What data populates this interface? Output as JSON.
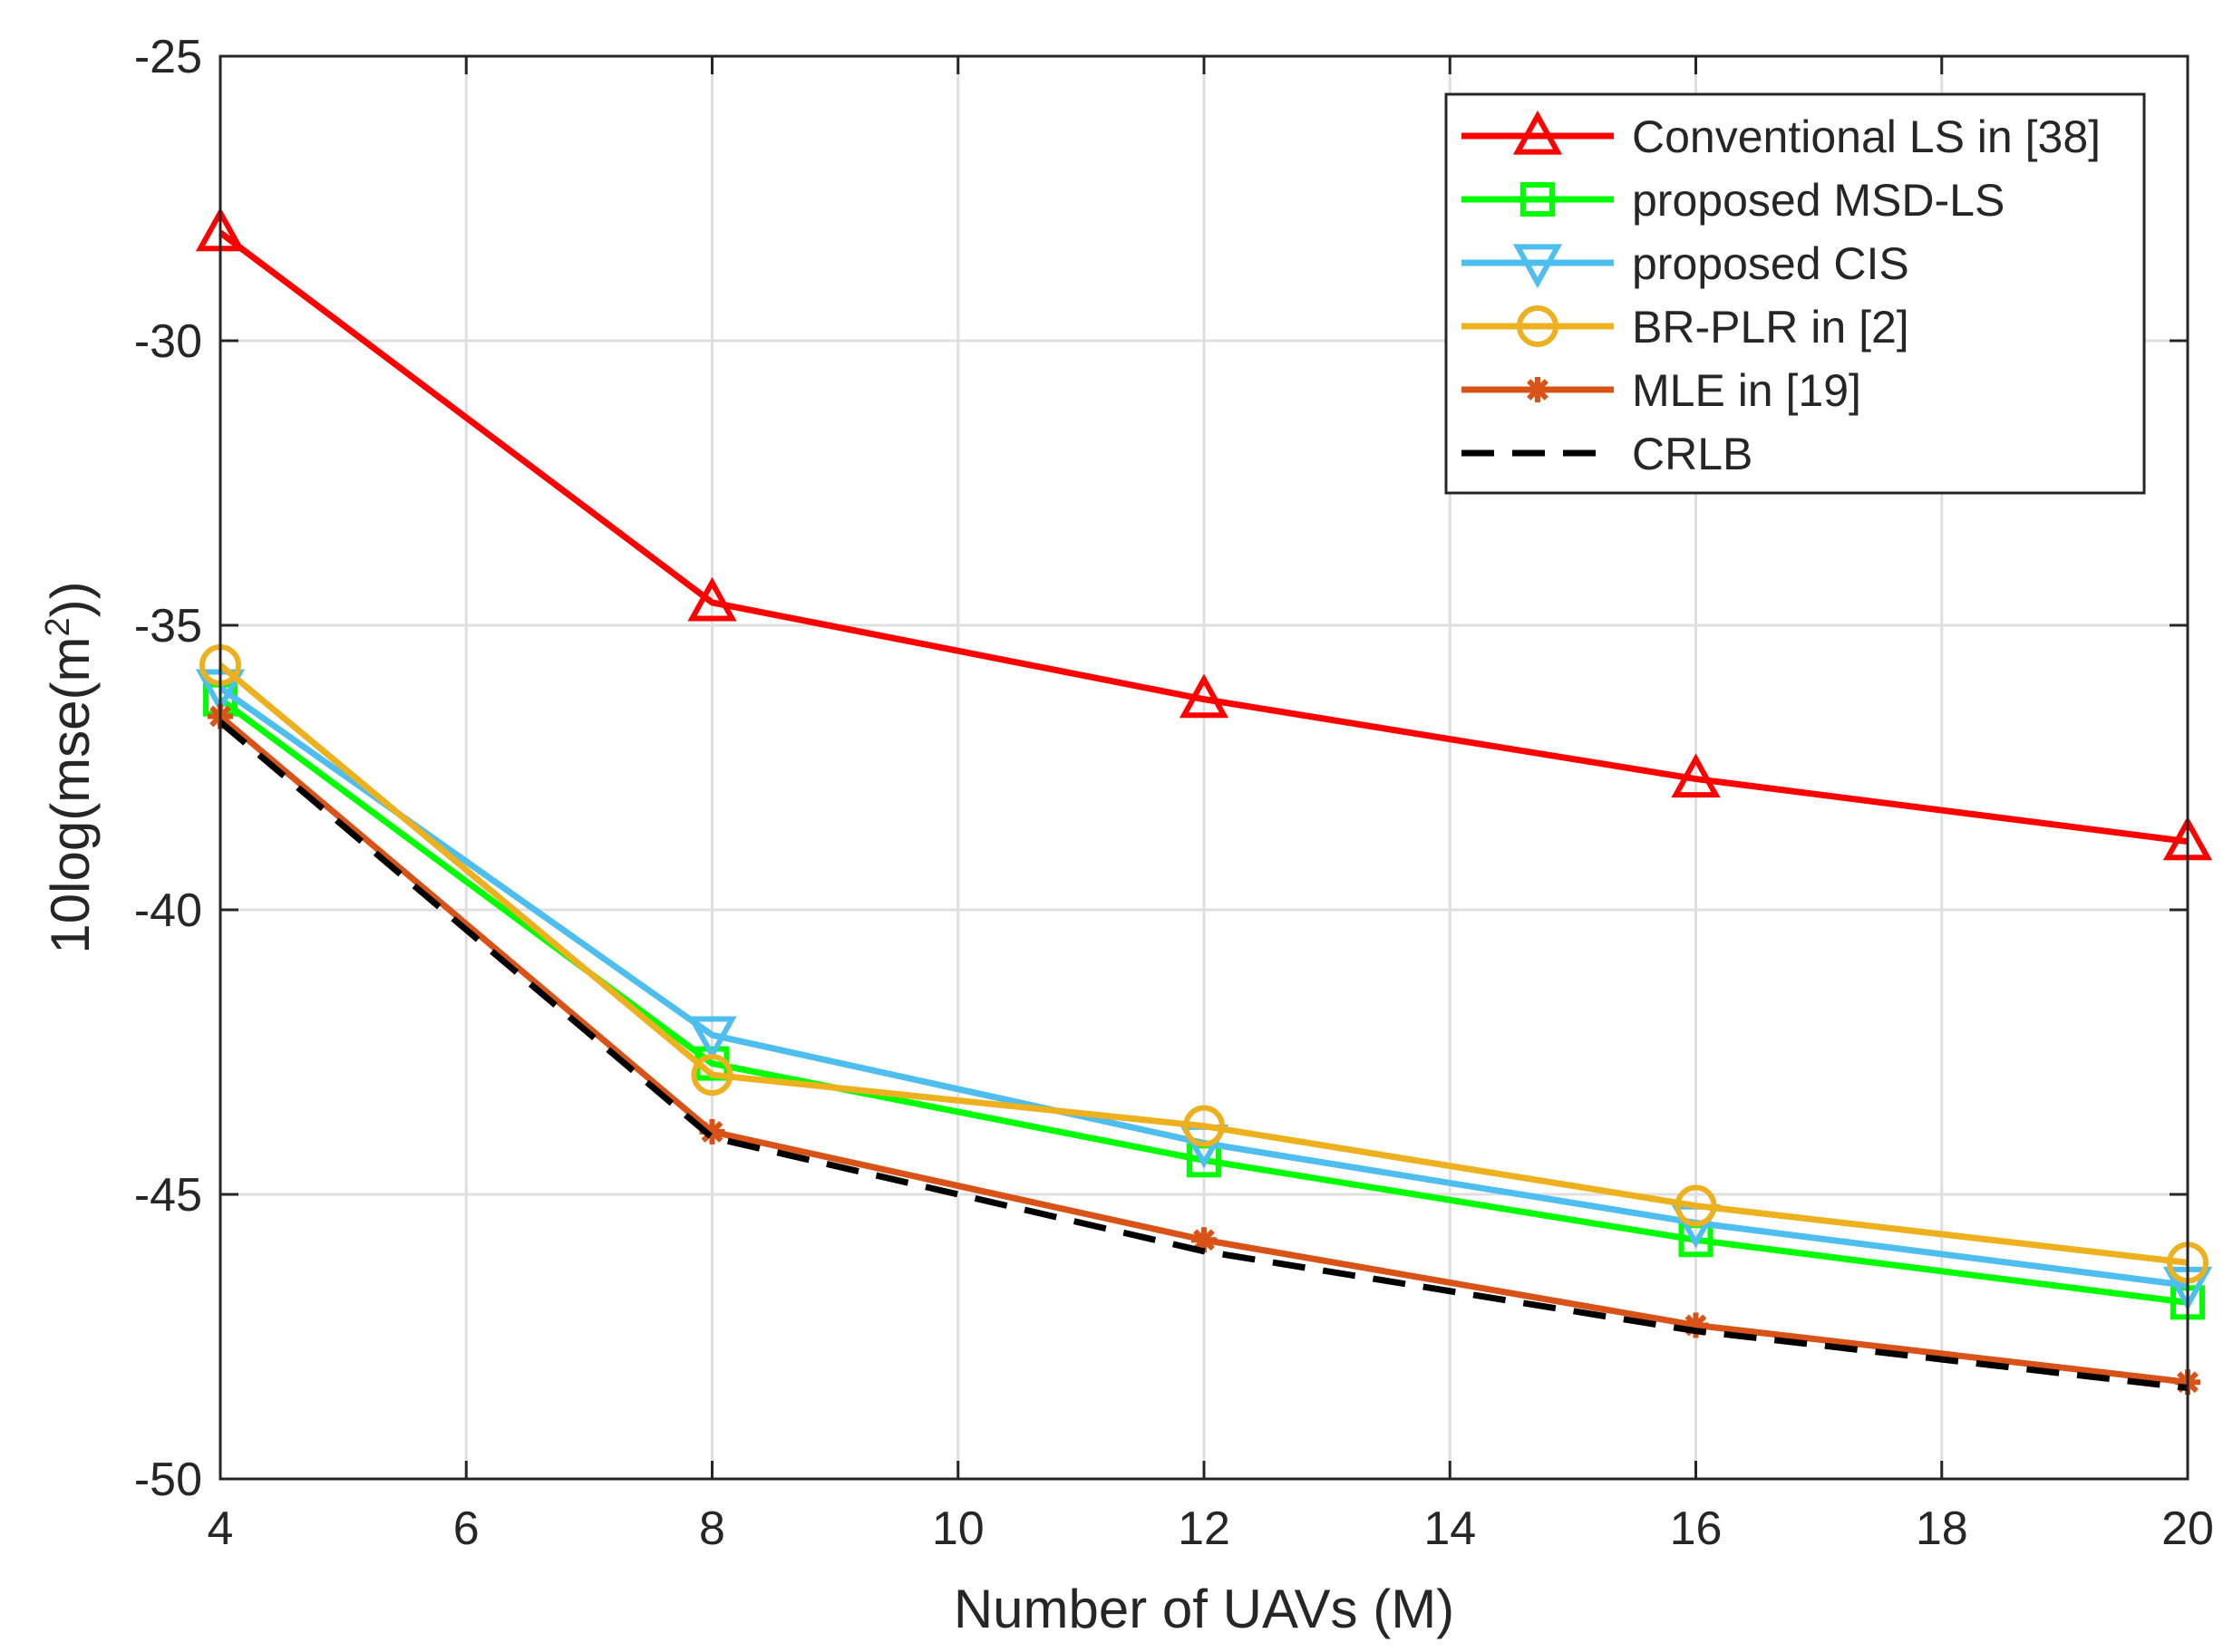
{
  "chart_data": {
    "type": "line",
    "title": "",
    "xlabel": "Number of UAVs (M)",
    "ylabel": {
      "prefix": "10log(mse(m",
      "superscript": "2",
      "suffix": "))"
    },
    "xlim": [
      4,
      20
    ],
    "ylim": [
      -50,
      -25
    ],
    "xticks": [
      4,
      6,
      8,
      10,
      12,
      14,
      16,
      18,
      20
    ],
    "yticks": [
      -25,
      -30,
      -35,
      -40,
      -45,
      -50
    ],
    "grid": true,
    "legend_position": "top-right",
    "x": [
      4,
      8,
      12,
      16,
      20
    ],
    "series": [
      {
        "name": "Conventional LS in [38]",
        "color": "#ff0000",
        "marker": "triangle-up",
        "dashed": false,
        "values": [
          -28.1,
          -34.6,
          -36.3,
          -37.7,
          -38.8
        ]
      },
      {
        "name": "proposed MSD-LS",
        "color": "#00ff00",
        "marker": "square",
        "dashed": false,
        "values": [
          -36.3,
          -42.7,
          -44.4,
          -45.8,
          -46.9
        ]
      },
      {
        "name": "proposed CIS",
        "color": "#4dbeee",
        "marker": "triangle-down",
        "dashed": false,
        "values": [
          -36.1,
          -42.2,
          -44.1,
          -45.5,
          -46.6
        ]
      },
      {
        "name": "BR-PLR in [2]",
        "color": "#edb120",
        "marker": "circle",
        "dashed": false,
        "values": [
          -35.7,
          -42.9,
          -43.8,
          -45.2,
          -46.2
        ]
      },
      {
        "name": "MLE in [19]",
        "color": "#d95319",
        "marker": "asterisk",
        "dashed": false,
        "values": [
          -36.6,
          -43.9,
          -45.8,
          -47.3,
          -48.3
        ]
      },
      {
        "name": "CRLB",
        "color": "#000000",
        "marker": "none",
        "dashed": true,
        "values": [
          -36.7,
          -44.0,
          -46.0,
          -47.4,
          -48.4
        ]
      }
    ]
  }
}
